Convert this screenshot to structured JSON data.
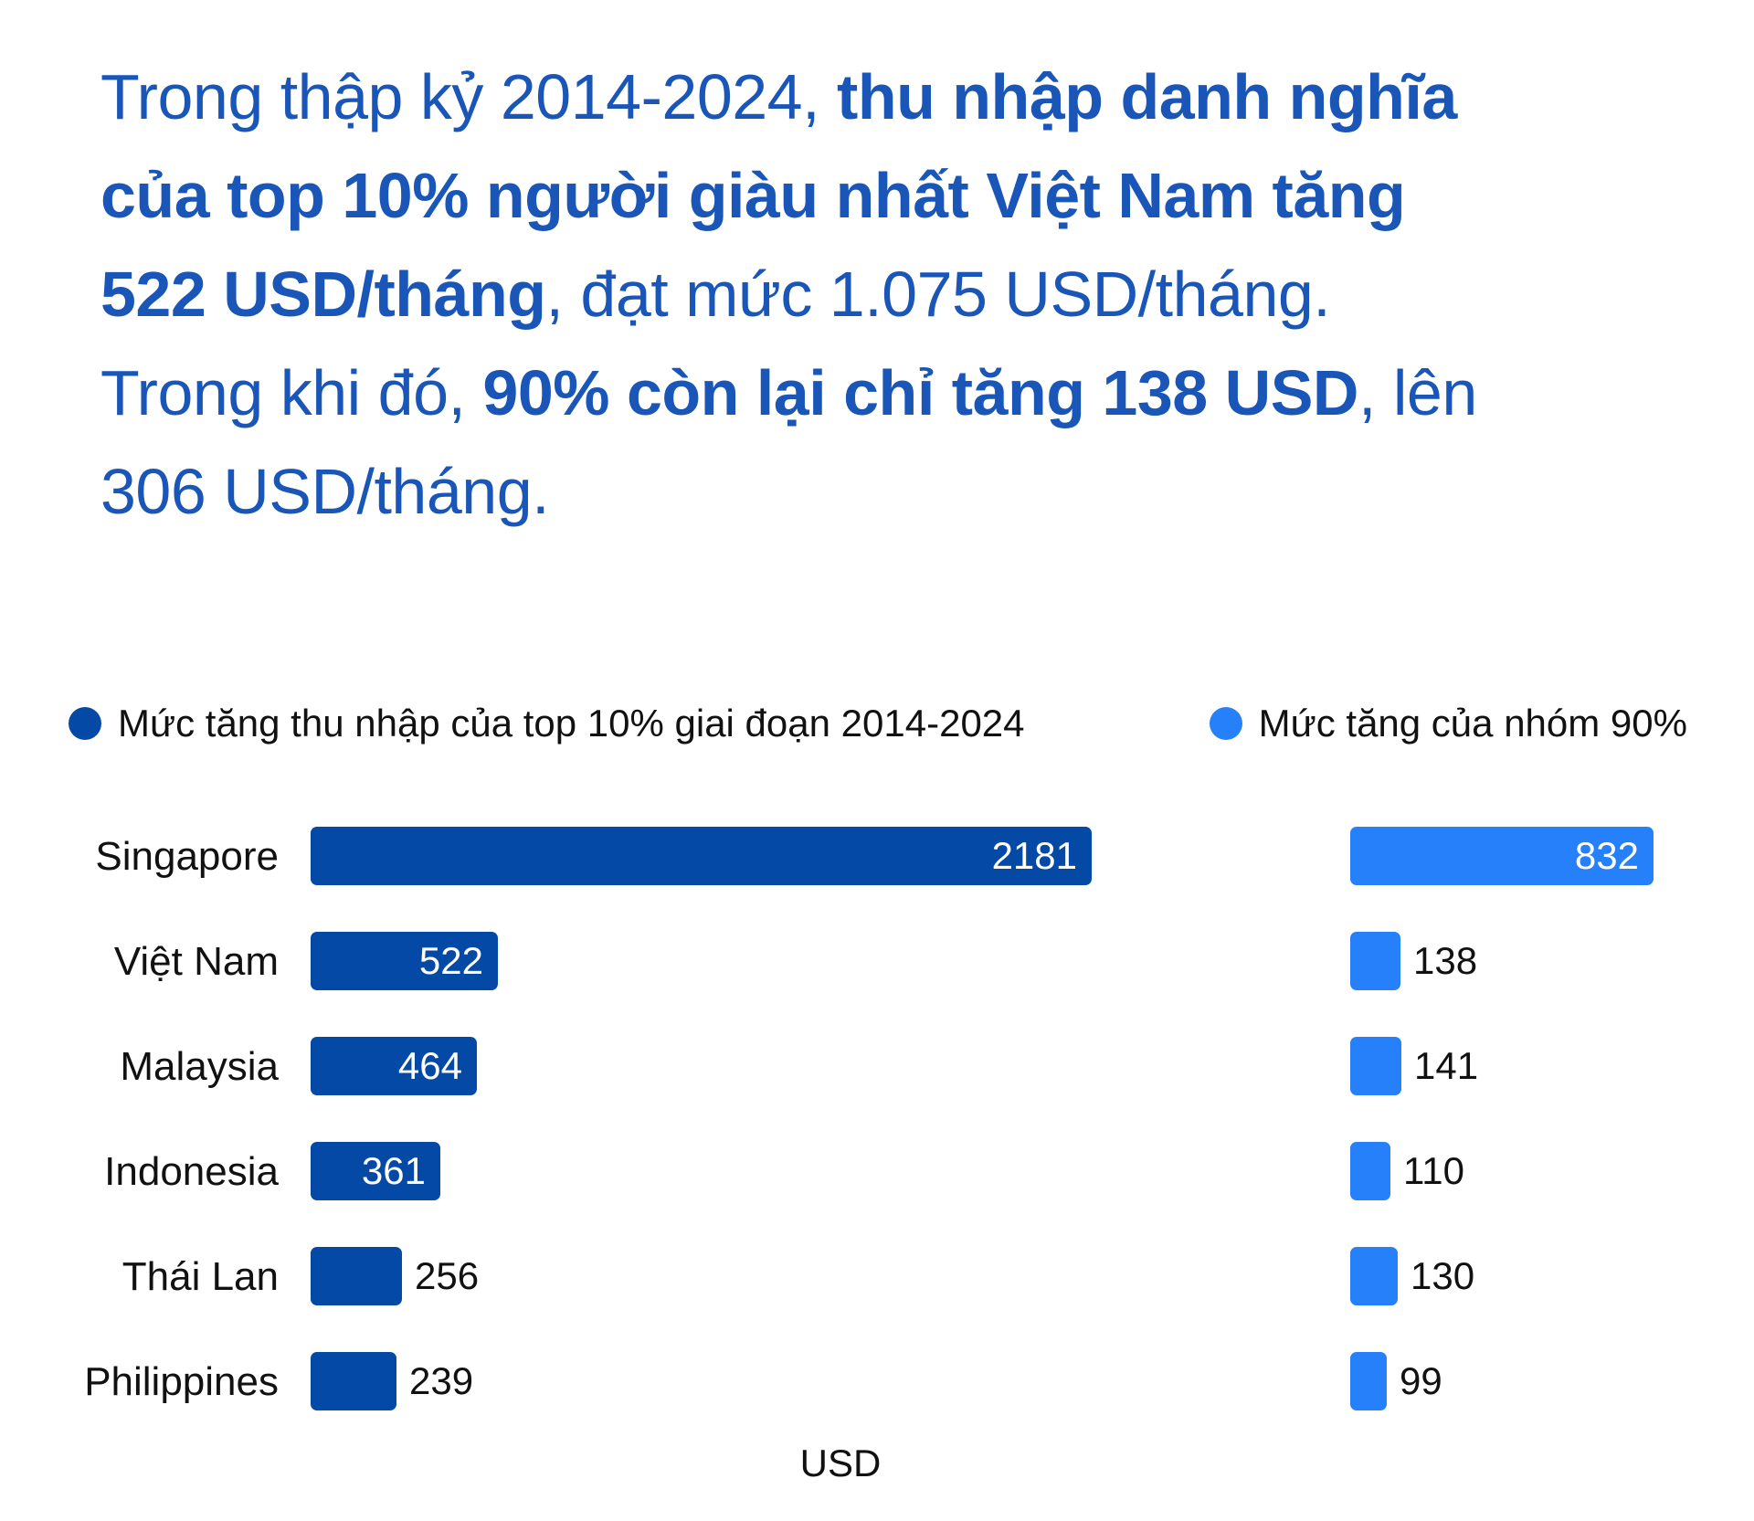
{
  "headline": {
    "lines": [
      {
        "segments": [
          {
            "text": "Trong thập kỷ 2014-2024, ",
            "bold": false
          },
          {
            "text": "thu nhập danh nghĩa",
            "bold": true
          }
        ]
      },
      {
        "segments": [
          {
            "text": "của top 10% người giàu nhất Việt Nam tăng",
            "bold": true
          }
        ]
      },
      {
        "segments": [
          {
            "text": "522 USD/tháng",
            "bold": true
          },
          {
            "text": ", đạt mức 1.075 USD/tháng.",
            "bold": false
          }
        ]
      },
      {
        "segments": [
          {
            "text": "Trong khi đó, ",
            "bold": false
          },
          {
            "text": "90% còn lại chỉ tăng 138 USD",
            "bold": true
          },
          {
            "text": ", lên",
            "bold": false
          }
        ]
      },
      {
        "segments": [
          {
            "text": "306 USD/tháng.",
            "bold": false
          }
        ]
      }
    ],
    "text_color": "#1956B8"
  },
  "legend": [
    {
      "label": "Mức tăng thu nhập của top 10% giai đoạn 2014-2024",
      "color": "#0549A6"
    },
    {
      "label": "Mức tăng của nhóm 90%",
      "color": "#2680FA"
    }
  ],
  "chart_data": {
    "type": "bar",
    "orientation": "horizontal",
    "categories": [
      "Singapore",
      "Việt Nam",
      "Malaysia",
      "Indonesia",
      "Thái Lan",
      "Philippines"
    ],
    "series": [
      {
        "name": "Mức tăng thu nhập của top 10% giai đoạn 2014-2024",
        "color": "#0549A6",
        "values": [
          2181,
          522,
          464,
          361,
          256,
          239
        ]
      },
      {
        "name": "Mức tăng của nhóm 90%",
        "color": "#2680FA",
        "values": [
          832,
          138,
          141,
          110,
          130,
          99
        ]
      }
    ],
    "xlabel": "USD",
    "value_labels": "shown at end of each bar",
    "grid": false,
    "legend_position": "top"
  }
}
